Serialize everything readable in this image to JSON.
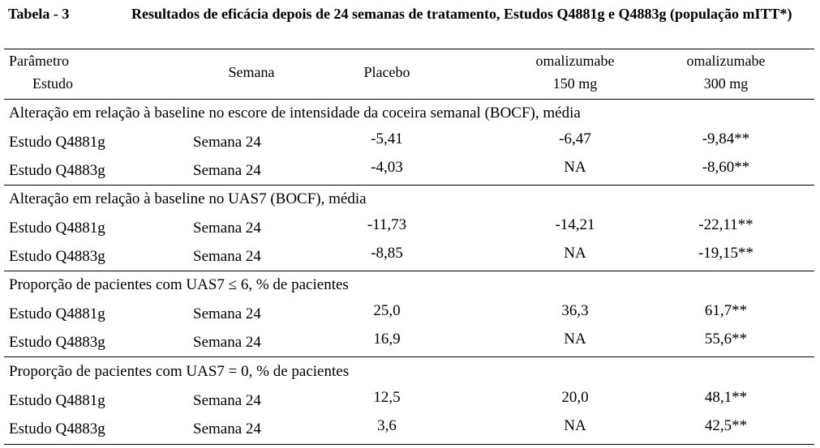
{
  "caption": {
    "label": "Tabela - 3",
    "title": "Resultados de eficácia depois de 24 semanas de tratamento, Estudos Q4881g e Q4883g (população mITT*)"
  },
  "header": {
    "parametro": "Parâmetro",
    "estudo": "Estudo",
    "semana": "Semana",
    "placebo": "Placebo",
    "oma150_line1": "omalizumabe",
    "oma150_line2": "150 mg",
    "oma300_line1": "omalizumabe",
    "oma300_line2": "300 mg"
  },
  "sections": [
    {
      "title": "Alteração em relação à baseline no escore de intensidade da coceira semanal (BOCF), média",
      "rows": [
        {
          "study": "Estudo Q4881g",
          "week": "Semana 24",
          "placebo": "-5,41",
          "oma150": "-6,47",
          "oma300": "-9,84**"
        },
        {
          "study": "Estudo Q4883g",
          "week": "Semana 24",
          "placebo": "-4,03",
          "oma150": "NA",
          "oma300": "-8,60**"
        }
      ]
    },
    {
      "title": "Alteração em relação à baseline no UAS7 (BOCF), média",
      "rows": [
        {
          "study": "Estudo Q4881g",
          "week": "Semana 24",
          "placebo": "-11,73",
          "oma150": "-14,21",
          "oma300": "-22,11**"
        },
        {
          "study": "Estudo Q4883g",
          "week": "Semana 24",
          "placebo": "-8,85",
          "oma150": "NA",
          "oma300": "-19,15**"
        }
      ]
    },
    {
      "title": "Proporção de pacientes com UAS7 ≤ 6, % de pacientes",
      "rows": [
        {
          "study": "Estudo Q4881g",
          "week": "Semana 24",
          "placebo": "25,0",
          "oma150": "36,3",
          "oma300": "61,7**"
        },
        {
          "study": "Estudo Q4883g",
          "week": "Semana 24",
          "placebo": "16,9",
          "oma150": "NA",
          "oma300": "55,6**"
        }
      ]
    },
    {
      "title": "Proporção de pacientes com UAS7 = 0, % de pacientes",
      "rows": [
        {
          "study": "Estudo Q4881g",
          "week": "Semana 24",
          "placebo": "12,5",
          "oma150": "20,0",
          "oma300": "48,1**"
        },
        {
          "study": "Estudo Q4883g",
          "week": "Semana 24",
          "placebo": "3,6",
          "oma150": "NA",
          "oma300": "42,5**"
        }
      ]
    }
  ]
}
